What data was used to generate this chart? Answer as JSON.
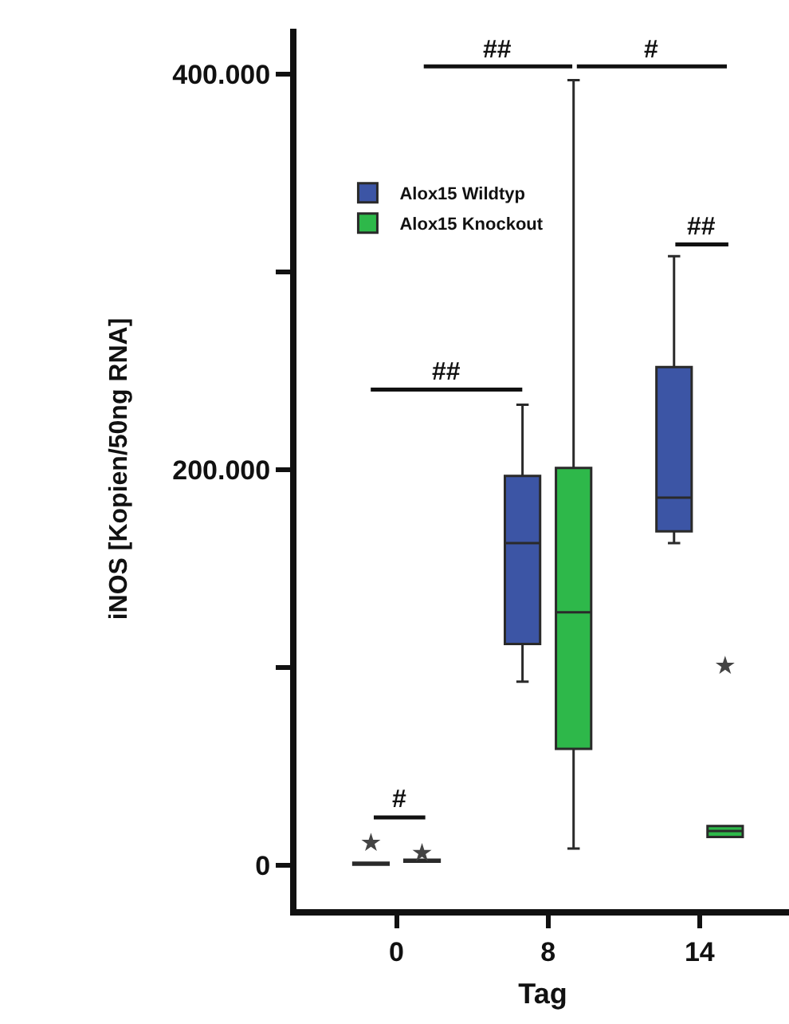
{
  "chart_data": {
    "type": "box",
    "xlabel": "Tag",
    "ylabel": "iNOS [Kopien/50ng RNA]",
    "categories": [
      "0",
      "8",
      "14"
    ],
    "series": [
      {
        "name": "Alox15 Wildtyp",
        "color": "#3c55a5",
        "boxes": [
          {
            "low": 500,
            "q1": 500,
            "median": 1000,
            "q3": 1500,
            "high": 1500,
            "outliers": [
              11500
            ]
          },
          {
            "low": 93000,
            "q1": 112000,
            "median": 163000,
            "q3": 197000,
            "high": 233000
          },
          {
            "low": 163000,
            "q1": 169000,
            "median": 186000,
            "q3": 252000,
            "high": 308000
          }
        ]
      },
      {
        "name": "Alox15 Knockout",
        "color": "#2eb84a",
        "boxes": [
          {
            "low": 2000,
            "q1": 2000,
            "median": 2400,
            "q3": 3000,
            "high": 3000,
            "outliers": [
              6400
            ]
          },
          {
            "low": 8600,
            "q1": 59000,
            "median": 128000,
            "q3": 201000,
            "high": 397000
          },
          {
            "low": 14500,
            "q1": 14500,
            "median": 17500,
            "q3": 20000,
            "high": 20000,
            "outliers": [
              101000
            ]
          }
        ]
      }
    ],
    "ylim": [
      -22000,
      423000
    ],
    "yticks": [
      {
        "value": 0,
        "label": "0"
      },
      {
        "value": 100000,
        "label": null
      },
      {
        "value": 200000,
        "label": "200.000"
      },
      {
        "value": 300000,
        "label": null
      },
      {
        "value": 400000,
        "label": "400.000"
      }
    ],
    "annotations": [
      "##",
      "##",
      "#",
      "##",
      "#"
    ],
    "marker": "star",
    "legend": "top left",
    "grid": false
  }
}
